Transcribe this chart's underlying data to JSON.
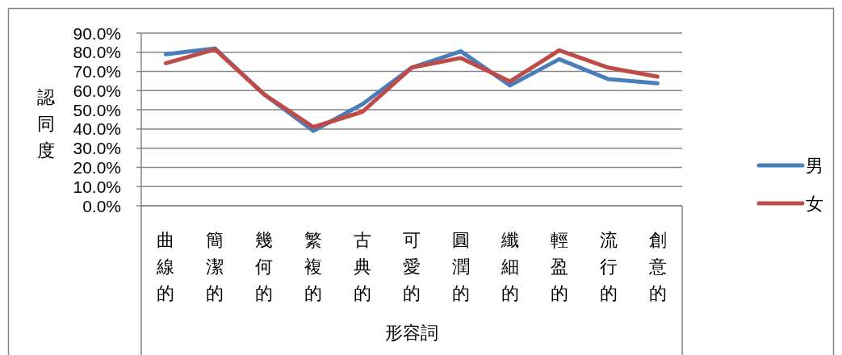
{
  "chart_data": {
    "type": "line",
    "ylabel": "認同度",
    "xlabel": "形容詞",
    "categories": [
      "曲線的",
      "簡潔的",
      "幾何的",
      "繁複的",
      "古典的",
      "可愛的",
      "圓潤的",
      "纖細的",
      "輕盈的",
      "流行的",
      "創意的"
    ],
    "series": [
      {
        "name": "男",
        "color": "#4a7ebb",
        "values": [
          79,
          82,
          58,
          39,
          53,
          72,
          80.5,
          62.7,
          76.4,
          66,
          63.8
        ]
      },
      {
        "name": "女",
        "color": "#be4b48",
        "values": [
          74.3,
          81.5,
          58,
          41,
          49,
          72,
          77,
          64.8,
          81,
          72,
          67.3
        ]
      }
    ],
    "ylim": [
      0,
      90
    ],
    "yticks": [
      {
        "value": 0,
        "label": "0.0%"
      },
      {
        "value": 10,
        "label": "10.0%"
      },
      {
        "value": 20,
        "label": "20.0%"
      },
      {
        "value": 30,
        "label": "30.0%"
      },
      {
        "value": 40,
        "label": "40.0%"
      },
      {
        "value": 50,
        "label": "50.0%"
      },
      {
        "value": 60,
        "label": "60.0%"
      },
      {
        "value": 70,
        "label": "70.0%"
      },
      {
        "value": 80,
        "label": "80.0%"
      },
      {
        "value": 90,
        "label": "90.0%"
      }
    ],
    "grid": "y",
    "legend": "right",
    "line_style": "solid"
  }
}
